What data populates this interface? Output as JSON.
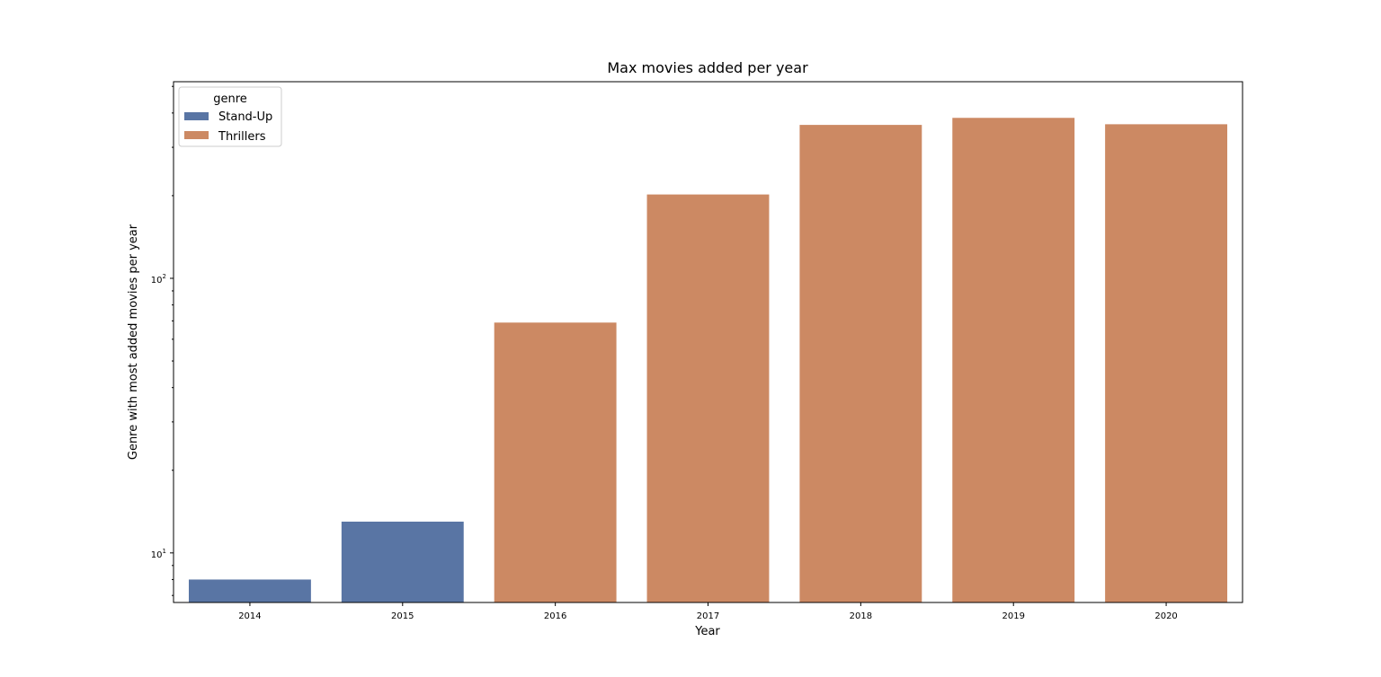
{
  "chart_data": {
    "type": "bar",
    "title": "Max movies added per year",
    "xlabel": "Year",
    "ylabel": "Genre with most added movies per year",
    "y_scale": "log",
    "ylim": [
      6.6,
      520
    ],
    "y_ticks": [
      {
        "value": 10,
        "base": "10",
        "exp": "1"
      },
      {
        "value": 100,
        "base": "10",
        "exp": "2"
      }
    ],
    "categories": [
      "2014",
      "2015",
      "2016",
      "2017",
      "2018",
      "2019",
      "2020"
    ],
    "values": [
      8,
      13,
      69,
      202,
      362,
      384,
      364
    ],
    "genres": [
      "Stand-Up",
      "Stand-Up",
      "Thrillers",
      "Thrillers",
      "Thrillers",
      "Thrillers",
      "Thrillers"
    ],
    "legend": {
      "title": "genre",
      "placement": "top-left",
      "entries": [
        {
          "name": "Stand-Up",
          "color": "#5975a4"
        },
        {
          "name": "Thrillers",
          "color": "#cc8963"
        }
      ]
    },
    "grid": false
  }
}
